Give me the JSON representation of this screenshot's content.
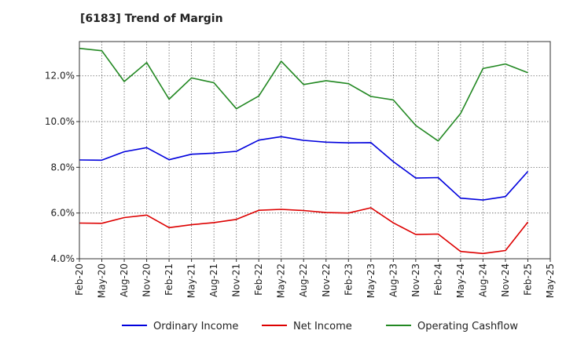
{
  "chart_data": {
    "type": "line",
    "title": "[6183]  Trend of Margin",
    "xlabel": "",
    "ylabel": "",
    "x": [
      "Feb-20",
      "May-20",
      "Aug-20",
      "Nov-20",
      "Feb-21",
      "May-21",
      "Aug-21",
      "Nov-21",
      "Feb-22",
      "May-22",
      "Aug-22",
      "Nov-22",
      "Feb-23",
      "May-23",
      "Aug-23",
      "Nov-23",
      "Feb-24",
      "May-24",
      "Aug-24",
      "Nov-24",
      "Feb-25",
      "May-25"
    ],
    "ylim": [
      4.0,
      13.5
    ],
    "yticks": [
      4.0,
      6.0,
      8.0,
      10.0,
      12.0
    ],
    "ytick_labels": [
      "4.0%",
      "6.0%",
      "8.0%",
      "10.0%",
      "12.0%"
    ],
    "grid": true,
    "legend_position": "bottom",
    "series": [
      {
        "name": "Ordinary Income",
        "color": "#0000dd",
        "values": [
          8.32,
          8.31,
          8.68,
          8.86,
          8.33,
          8.57,
          8.62,
          8.7,
          9.19,
          9.34,
          9.18,
          9.1,
          9.07,
          9.08,
          8.25,
          7.53,
          7.55,
          6.65,
          6.57,
          6.72,
          7.82,
          null
        ]
      },
      {
        "name": "Net Income",
        "color": "#dd0000",
        "values": [
          5.56,
          5.55,
          5.8,
          5.91,
          5.36,
          5.49,
          5.58,
          5.72,
          6.12,
          6.16,
          6.11,
          6.02,
          6.0,
          6.23,
          5.57,
          5.06,
          5.08,
          4.32,
          4.23,
          4.36,
          5.6,
          null
        ]
      },
      {
        "name": "Operating Cashflow",
        "color": "#228822",
        "values": [
          13.2,
          13.1,
          11.75,
          12.58,
          10.98,
          11.91,
          11.7,
          10.56,
          11.12,
          12.64,
          11.62,
          11.79,
          11.66,
          11.1,
          10.95,
          9.83,
          9.15,
          10.35,
          12.32,
          12.52,
          12.14,
          null
        ]
      }
    ]
  }
}
